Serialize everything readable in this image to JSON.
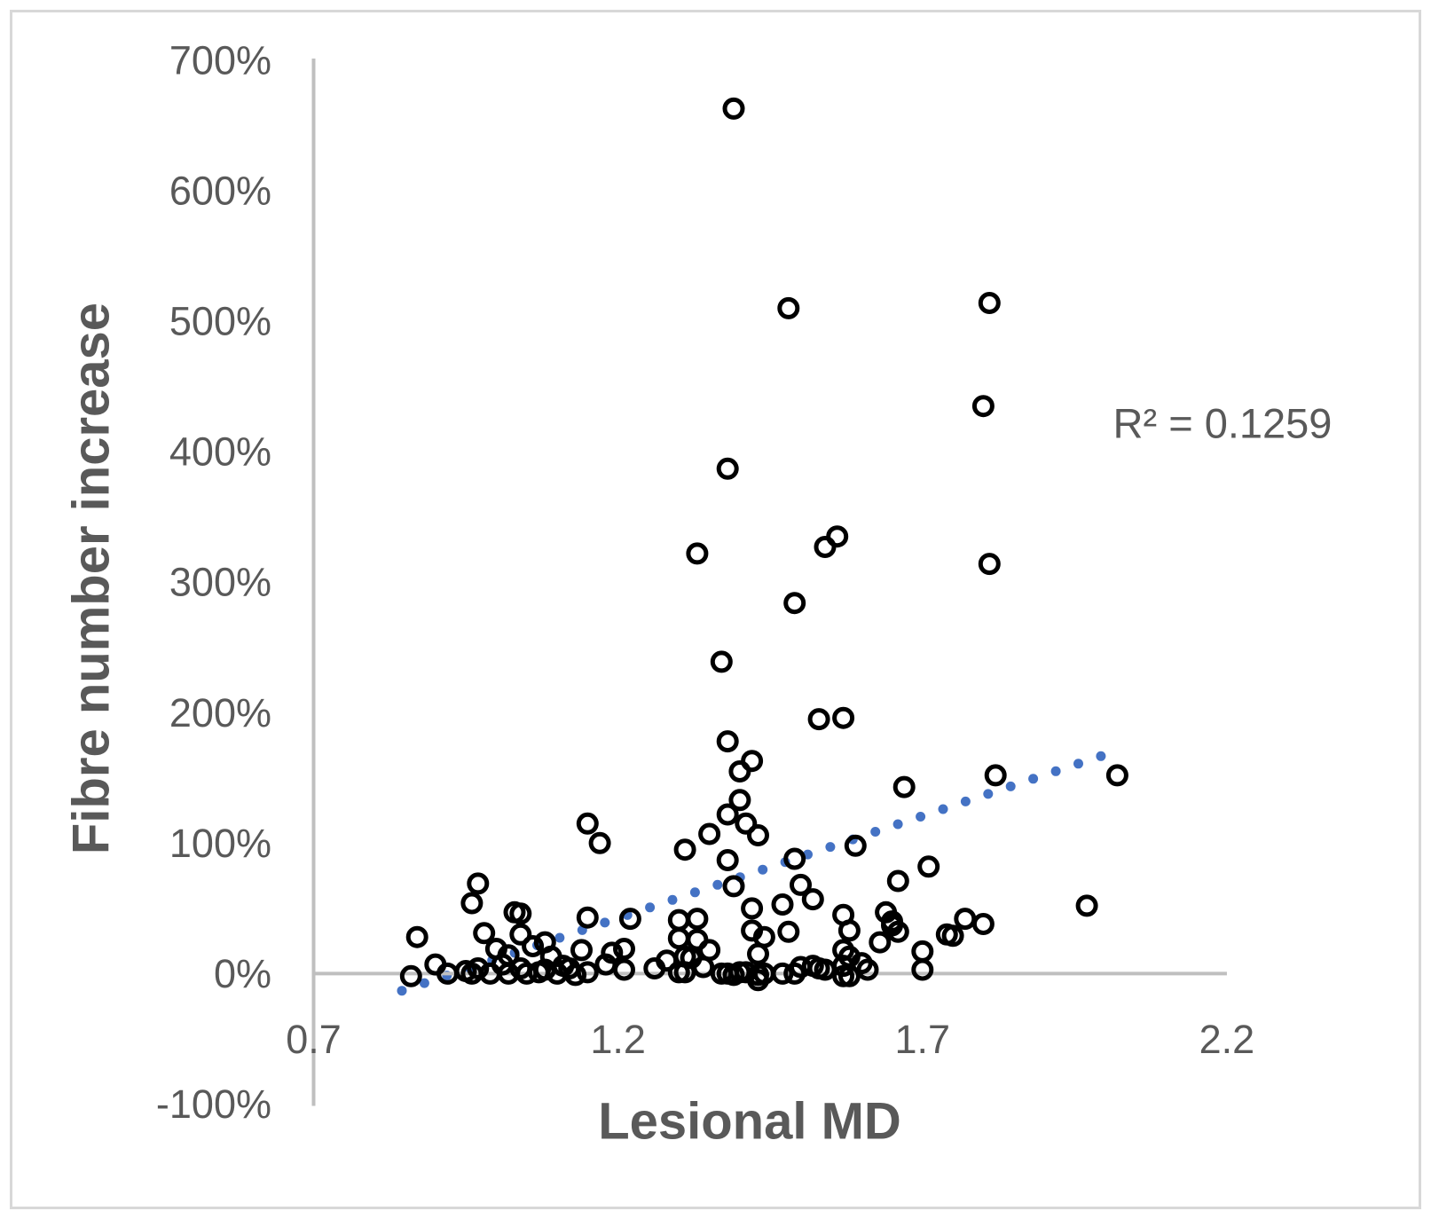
{
  "chart_data": {
    "type": "scatter",
    "title": "",
    "xlabel": "Lesional MD",
    "ylabel": "Fibre number increase",
    "annotation": "R² = 0.1259",
    "r_squared": 0.1259,
    "xlim": [
      0.7,
      2.2
    ],
    "ylim": [
      -100,
      700
    ],
    "grid": "off",
    "legend": "none",
    "x_ticks": [
      "0.7",
      "1.2",
      "1.7",
      "2.2"
    ],
    "x_tick_values": [
      0.7,
      1.2,
      1.7,
      2.2
    ],
    "y_ticks": [
      "700%",
      "600%",
      "500%",
      "400%",
      "300%",
      "200%",
      "100%",
      "0%",
      "-100%"
    ],
    "y_tick_values": [
      700,
      600,
      500,
      400,
      300,
      200,
      100,
      0,
      -100
    ],
    "y_unit": "percent",
    "marker": {
      "shape": "open-circle",
      "color": "#000000"
    },
    "trendline": {
      "type": "linear",
      "style": "round-dot",
      "color": "#4472C4",
      "x_start": 0.845,
      "y_start": -13.1,
      "x_end": 1.993,
      "y_end": 166.7,
      "dot_count": 32
    },
    "colors": {
      "axis_line": "#bfbfbf",
      "text": "#595959",
      "trend": "#4472C4",
      "marker": "#000000",
      "frame_border": "#d8d8d8"
    },
    "points": [
      [
        1.39,
        663
      ],
      [
        1.81,
        514
      ],
      [
        1.48,
        510
      ],
      [
        1.8,
        435
      ],
      [
        1.38,
        387
      ],
      [
        1.56,
        335
      ],
      [
        1.54,
        327
      ],
      [
        1.33,
        322
      ],
      [
        1.81,
        314
      ],
      [
        1.49,
        284
      ],
      [
        1.37,
        239
      ],
      [
        1.57,
        196
      ],
      [
        1.53,
        195
      ],
      [
        1.38,
        178
      ],
      [
        1.42,
        163
      ],
      [
        1.4,
        155
      ],
      [
        1.82,
        152
      ],
      [
        2.02,
        152
      ],
      [
        1.67,
        143
      ],
      [
        1.4,
        133
      ],
      [
        1.38,
        122
      ],
      [
        1.15,
        115
      ],
      [
        1.41,
        115
      ],
      [
        1.35,
        107
      ],
      [
        1.43,
        106
      ],
      [
        1.17,
        100
      ],
      [
        1.59,
        98
      ],
      [
        1.31,
        95
      ],
      [
        1.49,
        88
      ],
      [
        1.38,
        87
      ],
      [
        1.71,
        82
      ],
      [
        1.66,
        71
      ],
      [
        0.97,
        69
      ],
      [
        1.5,
        68
      ],
      [
        1.39,
        67
      ],
      [
        1.52,
        57
      ],
      [
        0.96,
        54
      ],
      [
        1.47,
        53
      ],
      [
        1.97,
        52
      ],
      [
        1.42,
        50
      ],
      [
        1.03,
        47
      ],
      [
        1.64,
        47
      ],
      [
        1.04,
        46
      ],
      [
        1.57,
        45
      ],
      [
        1.15,
        43
      ],
      [
        1.22,
        42
      ],
      [
        1.33,
        42
      ],
      [
        1.77,
        42
      ],
      [
        1.3,
        41
      ],
      [
        1.65,
        40
      ],
      [
        1.8,
        38
      ],
      [
        1.65,
        37
      ],
      [
        1.42,
        33
      ],
      [
        1.58,
        33
      ],
      [
        1.48,
        32
      ],
      [
        1.66,
        32
      ],
      [
        0.98,
        31
      ],
      [
        1.04,
        30
      ],
      [
        1.74,
        30
      ],
      [
        1.75,
        29
      ],
      [
        0.87,
        28
      ],
      [
        1.44,
        28
      ],
      [
        1.3,
        27
      ],
      [
        1.33,
        26
      ],
      [
        1.08,
        24
      ],
      [
        1.63,
        24
      ],
      [
        1.06,
        21
      ],
      [
        1.0,
        19
      ],
      [
        1.21,
        19
      ],
      [
        1.14,
        18
      ],
      [
        1.35,
        18
      ],
      [
        1.57,
        18
      ],
      [
        1.7,
        17
      ],
      [
        1.19,
        16
      ],
      [
        1.43,
        15
      ],
      [
        1.02,
        14
      ],
      [
        1.09,
        13
      ],
      [
        1.31,
        13
      ],
      [
        1.58,
        13
      ],
      [
        1.32,
        12
      ],
      [
        1.28,
        10
      ],
      [
        1.6,
        8
      ],
      [
        0.9,
        7
      ],
      [
        1.01,
        7
      ],
      [
        1.18,
        7
      ],
      [
        1.11,
        6
      ],
      [
        1.52,
        6
      ],
      [
        1.57,
        6
      ],
      [
        1.34,
        5
      ],
      [
        1.5,
        5
      ],
      [
        0.97,
        4
      ],
      [
        1.04,
        4
      ],
      [
        1.12,
        4
      ],
      [
        1.26,
        4
      ],
      [
        1.53,
        4
      ],
      [
        1.08,
        3
      ],
      [
        1.21,
        3
      ],
      [
        1.54,
        3
      ],
      [
        1.61,
        3
      ],
      [
        1.7,
        3
      ],
      [
        0.95,
        2
      ],
      [
        1.07,
        1
      ],
      [
        1.15,
        1
      ],
      [
        1.3,
        1
      ],
      [
        1.31,
        1
      ],
      [
        1.4,
        1
      ],
      [
        1.41,
        1
      ],
      [
        0.92,
        0
      ],
      [
        0.96,
        0
      ],
      [
        0.99,
        0
      ],
      [
        1.02,
        0
      ],
      [
        1.05,
        0
      ],
      [
        1.1,
        0
      ],
      [
        1.37,
        0
      ],
      [
        1.38,
        0
      ],
      [
        1.44,
        0
      ],
      [
        1.47,
        0
      ],
      [
        1.49,
        0
      ],
      [
        1.13,
        -1
      ],
      [
        1.39,
        -1
      ],
      [
        1.43,
        -1
      ],
      [
        0.86,
        -2
      ],
      [
        1.57,
        -2
      ],
      [
        1.58,
        -2
      ],
      [
        1.43,
        -5
      ]
    ]
  }
}
